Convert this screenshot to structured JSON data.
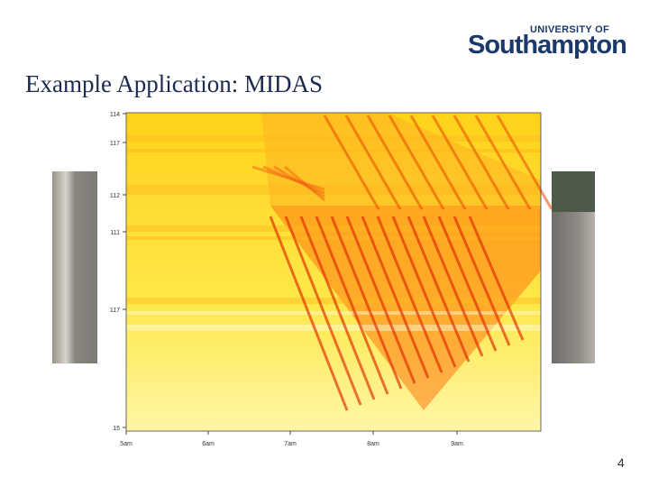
{
  "header": {
    "logo_top": "UNIVERSITY OF",
    "logo_main": "Southampton",
    "title": "Example Application: MIDAS"
  },
  "figure": {
    "y_labels": [
      "114",
      "117",
      "112",
      "111",
      "117",
      "15"
    ],
    "x_labels": [
      "5am",
      "6am",
      "7am",
      "8am",
      "9am"
    ]
  },
  "footer": {
    "page_number": "4"
  }
}
